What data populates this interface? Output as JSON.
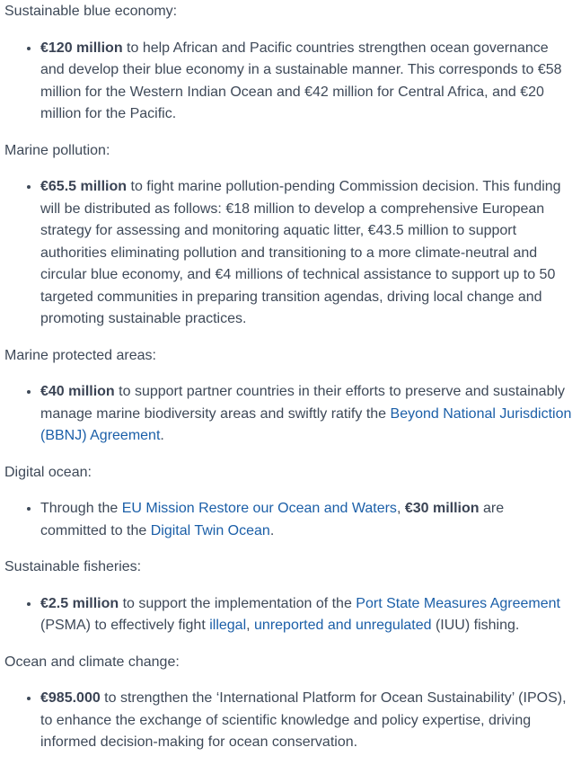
{
  "page": {
    "background_color": "#ffffff",
    "text_color": "#3e4958",
    "bold_color": "#3a4354",
    "link_color": "#1b5fa8"
  },
  "sections": [
    {
      "heading": "Sustainable blue economy:",
      "bullet": [
        {
          "t": "bold",
          "text": "€120 million"
        },
        {
          "t": "text",
          "text": " to help African and Pacific countries strengthen ocean governance and develop their blue economy in a sustainable manner. This corresponds to €58 million for the Western Indian Ocean and €42 million for Central Africa, and €20 million for the Pacific."
        }
      ]
    },
    {
      "heading": "Marine pollution:",
      "bullet": [
        {
          "t": "bold",
          "text": "€65.5 million"
        },
        {
          "t": "text",
          "text": " to fight marine pollution-pending Commission decision. This funding will be distributed as follows: €18 million to develop a comprehensive European strategy for assessing and monitoring aquatic litter, €43.5 million to support authorities eliminating pollution and transitioning to a more climate-neutral and circular blue economy, and €4 millions of technical assistance to support up to 50 targeted communities in preparing transition agendas, driving local change and promoting sustainable practices."
        }
      ]
    },
    {
      "heading": "Marine protected areas:",
      "bullet": [
        {
          "t": "bold",
          "text": "€40 million"
        },
        {
          "t": "text",
          "text": " to support partner countries in their efforts to preserve and sustainably manage  marine biodiversity areas and swiftly ratify the "
        },
        {
          "t": "link",
          "name": "bbnj-agreement-link",
          "text": "Beyond National Jurisdiction (BBNJ) Agreement"
        },
        {
          "t": "text",
          "text": "."
        }
      ]
    },
    {
      "heading": "Digital ocean:",
      "bullet": [
        {
          "t": "text",
          "text": "Through the "
        },
        {
          "t": "link",
          "name": "eu-mission-restore-ocean-link",
          "text": "EU Mission Restore our Ocean and Waters"
        },
        {
          "t": "text",
          "text": ", "
        },
        {
          "t": "bold",
          "text": "€30 million"
        },
        {
          "t": "text",
          "text": " are committed to the "
        },
        {
          "t": "link",
          "name": "digital-twin-ocean-link",
          "text": "Digital Twin Ocean"
        },
        {
          "t": "text",
          "text": "."
        }
      ]
    },
    {
      "heading": "Sustainable fisheries:",
      "bullet": [
        {
          "t": "bold",
          "text": "€2.5 million"
        },
        {
          "t": "text",
          "text": " to support the implementation of the "
        },
        {
          "t": "link",
          "name": "port-state-measures-agreement-link",
          "text": "Port State Measures Agreement"
        },
        {
          "t": "text",
          "text": " (PSMA) to effectively fight "
        },
        {
          "t": "link",
          "name": "illegal-fishing-link",
          "text": "illegal"
        },
        {
          "t": "text",
          "text": ", "
        },
        {
          "t": "link",
          "name": "unreported-unregulated-fishing-link",
          "text": "unreported and unregulated"
        },
        {
          "t": "text",
          "text": " (IUU) fishing."
        }
      ]
    },
    {
      "heading": "Ocean and climate change:",
      "bullet": [
        {
          "t": "bold",
          "text": "€985.000"
        },
        {
          "t": "text",
          "text": " to strengthen the ‘International Platform for Ocean Sustainability’ (IPOS), to enhance the exchange of scientific knowledge and policy expertise, driving informed decision-making for ocean conservation."
        }
      ]
    }
  ]
}
